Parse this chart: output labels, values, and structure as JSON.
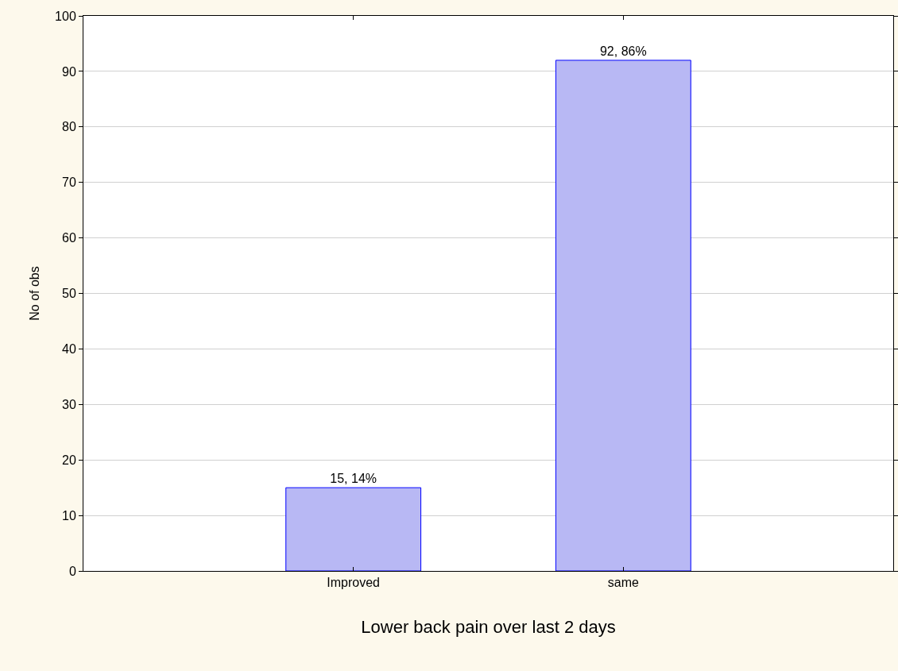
{
  "chart_data": {
    "type": "bar",
    "xlabel": "Lower back pain over last 2 days",
    "ylabel": "No of obs",
    "categories": [
      "Improved",
      "same"
    ],
    "values": [
      15,
      92
    ],
    "value_labels": [
      "15, 14%",
      "92, 86%"
    ],
    "color": "#b8b8f4",
    "ylim": [
      0,
      100
    ],
    "yticks": [
      0,
      10,
      20,
      30,
      40,
      50,
      60,
      70,
      80,
      90,
      100
    ],
    "grid": "y",
    "legend": false
  }
}
